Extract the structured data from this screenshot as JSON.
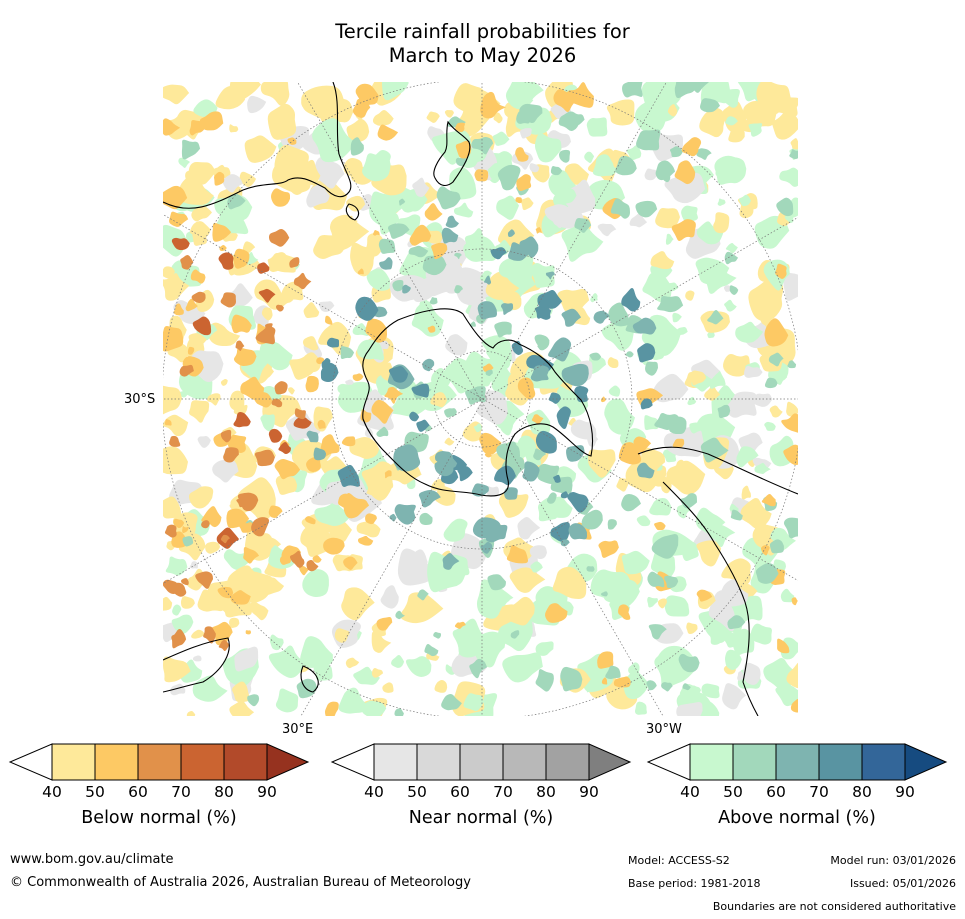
{
  "title_line1": "Tercile rainfall probabilities for",
  "title_line2": "March to May 2026",
  "map": {
    "projection": "south-polar-stereographic",
    "labels": {
      "lat_30s": "30°S",
      "lon_30e": "30°E",
      "lon_30w": "30°W"
    },
    "colors": {
      "ocean": "#ffffff",
      "coastline": "#000000",
      "graticule": "#777777"
    }
  },
  "legends": [
    {
      "title": "Below normal (%)",
      "ticks": [
        "40",
        "50",
        "60",
        "70",
        "80",
        "90"
      ],
      "colors": [
        "#ffffff",
        "#fee99a",
        "#fdc964",
        "#e1914a",
        "#cb6431",
        "#b24a2a",
        "#96321f"
      ]
    },
    {
      "title": "Near normal (%)",
      "ticks": [
        "40",
        "50",
        "60",
        "70",
        "80",
        "90"
      ],
      "colors": [
        "#ffffff",
        "#e6e6e6",
        "#d9d9d9",
        "#cbcbcb",
        "#b8b8b8",
        "#a2a2a2",
        "#7f7f7f"
      ]
    },
    {
      "title": "Above normal (%)",
      "ticks": [
        "40",
        "50",
        "60",
        "70",
        "80",
        "90"
      ],
      "colors": [
        "#ffffff",
        "#c8f8cf",
        "#a2d8bb",
        "#7eb4b0",
        "#5994a2",
        "#336699",
        "#164b80"
      ]
    }
  ],
  "footer": {
    "url": "www.bom.gov.au/climate",
    "copyright": "© Commonwealth of Australia 2026, Australian Bureau of Meteorology",
    "model": "Model: ACCESS-S2",
    "base_period": "Base period: 1981-2018",
    "model_run": "Model run: 03/01/2026",
    "issued": "Issued: 05/01/2026",
    "disclaimer": "Boundaries are not considered authoritative"
  }
}
